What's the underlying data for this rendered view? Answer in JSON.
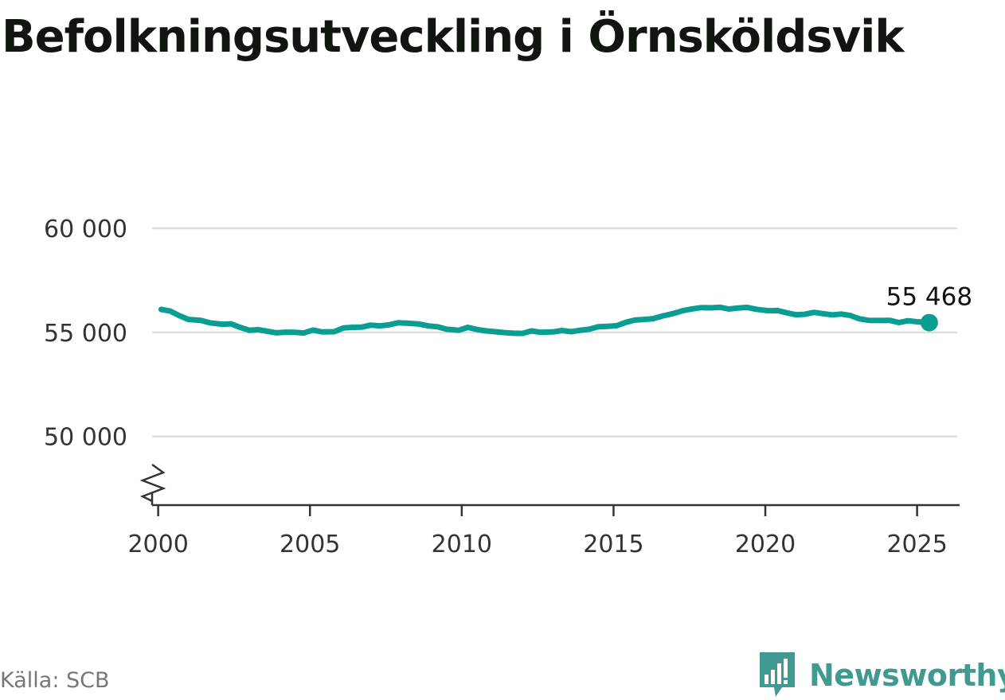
{
  "title": "Befolkningsutveckling i Örnsköldsvik",
  "source": "Källa: SCB",
  "brand": "Newsworthy",
  "colors": {
    "line": "#0a9e93",
    "grid": "#dddddd",
    "axis": "#333333",
    "brand": "#3f9b92"
  },
  "icons": {
    "brand_logo": "speech-bubble-bar-chart-icon",
    "axis_break": "zigzag-break-icon"
  },
  "chart_data": {
    "type": "line",
    "title": "Befolkningsutveckling i Örnsköldsvik",
    "xlabel": "",
    "ylabel": "",
    "xlim": [
      1999.8,
      2026.4
    ],
    "ylim": [
      46700,
      60000
    ],
    "y_axis_break": true,
    "grid": true,
    "x_ticks": [
      2000,
      2005,
      2010,
      2015,
      2020,
      2025
    ],
    "x_tick_labels": [
      "2000",
      "2005",
      "2010",
      "2015",
      "2020",
      "2025"
    ],
    "y_ticks": [
      50000,
      55000,
      60000
    ],
    "y_tick_labels": [
      "50 000",
      "55 000",
      "60 000"
    ],
    "end_label": "55 468",
    "series": [
      {
        "x": [
          2000.1,
          2000.4,
          2000.7,
          2001.0,
          2001.4,
          2001.7,
          2002.1,
          2002.4,
          2002.7,
          2003.0,
          2003.3,
          2003.6,
          2003.9,
          2004.2,
          2004.5,
          2004.8,
          2005.1,
          2005.4,
          2005.8,
          2006.1,
          2006.4,
          2006.7,
          2007.0,
          2007.3,
          2007.6,
          2007.9,
          2008.2,
          2008.6,
          2008.9,
          2009.2,
          2009.5,
          2009.9,
          2010.2,
          2010.5,
          2010.8,
          2011.1,
          2011.4,
          2011.7,
          2012.0,
          2012.3,
          2012.6,
          2013.0,
          2013.3,
          2013.6,
          2013.9,
          2014.2,
          2014.5,
          2014.8,
          2015.1,
          2015.4,
          2015.7,
          2016.0,
          2016.3,
          2016.6,
          2017.0,
          2017.3,
          2017.6,
          2017.9,
          2018.2,
          2018.5,
          2018.8,
          2019.1,
          2019.4,
          2019.7,
          2020.1,
          2020.4,
          2020.7,
          2021.0,
          2021.3,
          2021.6,
          2021.9,
          2022.2,
          2022.5,
          2022.8,
          2023.1,
          2023.4,
          2023.8,
          2024.1,
          2024.4,
          2024.7,
          2025.0,
          2025.4
        ],
        "y": [
          56100,
          56020,
          55800,
          55620,
          55580,
          55460,
          55390,
          55410,
          55240,
          55100,
          55130,
          55050,
          54980,
          55010,
          55000,
          54970,
          55110,
          55020,
          55030,
          55210,
          55240,
          55250,
          55350,
          55310,
          55360,
          55460,
          55440,
          55400,
          55310,
          55270,
          55150,
          55100,
          55240,
          55140,
          55070,
          55030,
          54990,
          54960,
          54950,
          55070,
          55000,
          55020,
          55090,
          55030,
          55100,
          55150,
          55270,
          55290,
          55320,
          55480,
          55590,
          55620,
          55660,
          55780,
          55920,
          56050,
          56130,
          56190,
          56180,
          56210,
          56120,
          56170,
          56200,
          56110,
          56040,
          56050,
          55940,
          55850,
          55870,
          55960,
          55900,
          55840,
          55880,
          55810,
          55650,
          55580,
          55570,
          55580,
          55470,
          55560,
          55510,
          55468
        ]
      }
    ]
  }
}
